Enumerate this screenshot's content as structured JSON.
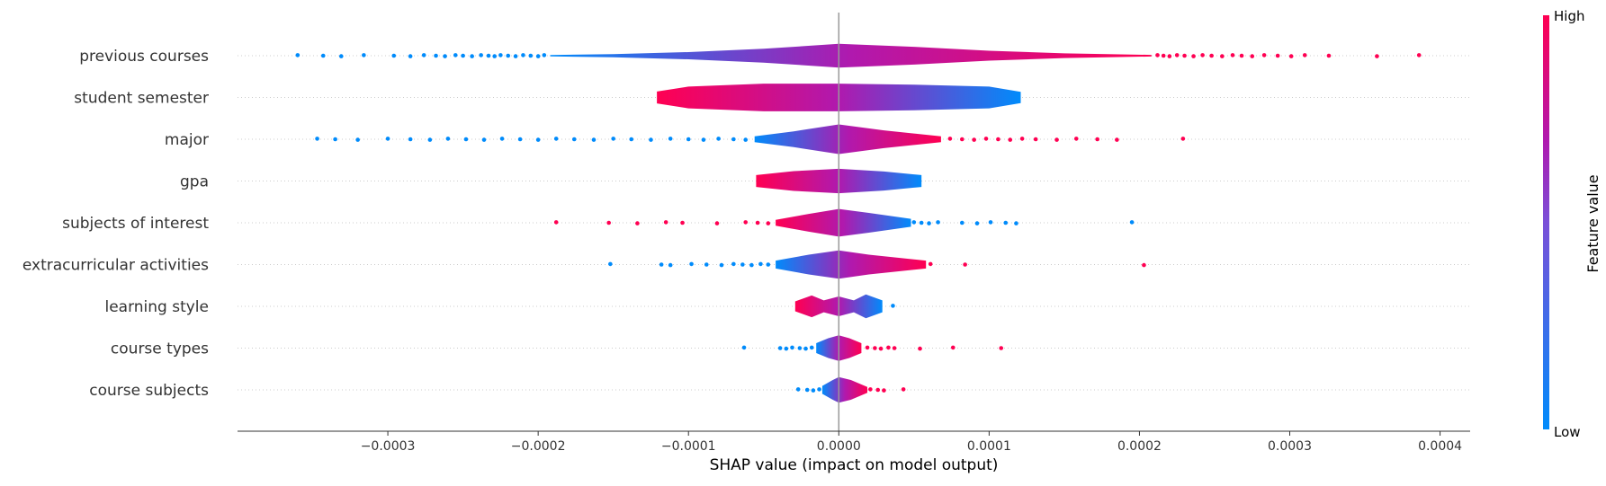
{
  "chart_data": {
    "type": "violin",
    "title": "",
    "xlabel": "SHAP value (impact on model output)",
    "xlim": [
      -0.0004,
      0.00042
    ],
    "x_ticks": [
      -0.0003,
      -0.0002,
      -0.0001,
      0.0,
      0.0001,
      0.0002,
      0.0003,
      0.0004
    ],
    "x_tick_labels": [
      "−0.0003",
      "−0.0002",
      "−0.0001",
      "0.0000",
      "0.0001",
      "0.0002",
      "0.0003",
      "0.0004"
    ],
    "grid": false,
    "colorbar": {
      "label": "Feature value",
      "high_label": "High",
      "low_label": "Low",
      "low_color": "#008bfb",
      "high_color": "#ff0052"
    },
    "features": [
      {
        "name": "previous courses",
        "body": [
          -0.000192,
          0.000208
        ],
        "widths": [
          [
            -0.000192,
            0.03
          ],
          [
            -0.00015,
            0.08
          ],
          [
            -0.0001,
            0.18
          ],
          [
            -5e-05,
            0.35
          ],
          [
            0.0,
            0.6
          ],
          [
            5e-05,
            0.45
          ],
          [
            0.0001,
            0.25
          ],
          [
            0.00015,
            0.12
          ],
          [
            0.000208,
            0.04
          ]
        ],
        "low_side": "left",
        "outliers_low": [
          -0.00036,
          -0.000343,
          -0.000331,
          -0.000316,
          -0.000296,
          -0.000285,
          -0.000276,
          -0.000268,
          -0.000262,
          -0.000255,
          -0.00025,
          -0.000244,
          -0.000238,
          -0.000233,
          -0.000229,
          -0.000225,
          -0.00022,
          -0.000215,
          -0.00021,
          -0.000205,
          -0.0002,
          -0.000196
        ],
        "outliers_high": [
          0.000212,
          0.000216,
          0.00022,
          0.000225,
          0.00023,
          0.000236,
          0.000242,
          0.000248,
          0.000255,
          0.000262,
          0.000268,
          0.000275,
          0.000283,
          0.000292,
          0.000301,
          0.00031,
          0.000326,
          0.000358,
          0.000386
        ]
      },
      {
        "name": "student semester",
        "body": [
          -0.000121,
          0.000121
        ],
        "widths": [
          [
            -0.000121,
            0.3
          ],
          [
            -0.0001,
            0.55
          ],
          [
            -5e-05,
            0.7
          ],
          [
            0.0,
            0.7
          ],
          [
            5e-05,
            0.65
          ],
          [
            0.0001,
            0.55
          ],
          [
            0.000121,
            0.28
          ]
        ],
        "low_side": "right",
        "outliers_low": [],
        "outliers_high": []
      },
      {
        "name": "major",
        "body": [
          -5.6e-05,
          6.8e-05
        ],
        "widths": [
          [
            -5.6e-05,
            0.15
          ],
          [
            -3e-05,
            0.4
          ],
          [
            0.0,
            0.75
          ],
          [
            3e-05,
            0.45
          ],
          [
            6.8e-05,
            0.15
          ]
        ],
        "low_side": "left",
        "outliers_low": [
          -0.000347,
          -0.000335,
          -0.00032,
          -0.0003,
          -0.000285,
          -0.000272,
          -0.00026,
          -0.000248,
          -0.000236,
          -0.000224,
          -0.000212,
          -0.0002,
          -0.000188,
          -0.000176,
          -0.000163,
          -0.00015,
          -0.000138,
          -0.000125,
          -0.000112,
          -0.0001,
          -9e-05,
          -8e-05,
          -7e-05,
          -6.2e-05
        ],
        "outliers_high": [
          7.4e-05,
          8.2e-05,
          9e-05,
          9.8e-05,
          0.000106,
          0.000114,
          0.000122,
          0.000131,
          0.000145,
          0.000158,
          0.000172,
          0.000185,
          0.000229
        ]
      },
      {
        "name": "gpa",
        "body": [
          -5.5e-05,
          5.5e-05
        ],
        "widths": [
          [
            -5.5e-05,
            0.3
          ],
          [
            -3e-05,
            0.5
          ],
          [
            0.0,
            0.62
          ],
          [
            3e-05,
            0.48
          ],
          [
            5.5e-05,
            0.3
          ]
        ],
        "low_side": "right",
        "outliers_low": [],
        "outliers_high": []
      },
      {
        "name": "subjects of interest",
        "body": [
          -4.2e-05,
          4.8e-05
        ],
        "widths": [
          [
            -4.2e-05,
            0.15
          ],
          [
            -2e-05,
            0.45
          ],
          [
            0.0,
            0.7
          ],
          [
            2e-05,
            0.5
          ],
          [
            4.8e-05,
            0.2
          ]
        ],
        "low_side": "right",
        "outliers_low": [
          5e-05,
          5.5e-05,
          6e-05,
          6.6e-05,
          8.2e-05,
          9.2e-05,
          0.000101,
          0.000111,
          0.000118,
          0.000195
        ],
        "outliers_high": [
          -0.000188,
          -0.000153,
          -0.000134,
          -0.000115,
          -0.000104,
          -8.1e-05,
          -6.2e-05,
          -5.4e-05,
          -4.7e-05
        ]
      },
      {
        "name": "extracurricular activities",
        "body": [
          -4.2e-05,
          5.8e-05
        ],
        "widths": [
          [
            -4.2e-05,
            0.2
          ],
          [
            -2e-05,
            0.5
          ],
          [
            0.0,
            0.72
          ],
          [
            2e-05,
            0.5
          ],
          [
            5.8e-05,
            0.2
          ]
        ],
        "low_side": "left",
        "outliers_low": [
          -0.000152,
          -0.000118,
          -0.000112,
          -9.8e-05,
          -8.8e-05,
          -7.8e-05,
          -7e-05,
          -6.4e-05,
          -5.8e-05,
          -5.2e-05,
          -4.7e-05
        ],
        "outliers_high": [
          6.1e-05,
          8.4e-05,
          0.000203
        ]
      },
      {
        "name": "learning style",
        "body": [
          -2.9e-05,
          2.9e-05
        ],
        "widths": [
          [
            -2.9e-05,
            0.25
          ],
          [
            -1.8e-05,
            0.55
          ],
          [
            -1e-05,
            0.3
          ],
          [
            0.0,
            0.5
          ],
          [
            1e-05,
            0.3
          ],
          [
            1.8e-05,
            0.6
          ],
          [
            2.9e-05,
            0.3
          ]
        ],
        "low_side": "right",
        "outliers_low": [
          3.6e-05
        ],
        "outliers_high": []
      },
      {
        "name": "course types",
        "body": [
          -1.5e-05,
          1.5e-05
        ],
        "widths": [
          [
            -1.5e-05,
            0.25
          ],
          [
            -7e-06,
            0.5
          ],
          [
            0.0,
            0.65
          ],
          [
            7e-06,
            0.5
          ],
          [
            1.5e-05,
            0.25
          ]
        ],
        "low_side": "left",
        "outliers_low": [
          -6.3e-05,
          -3.9e-05,
          -3.5e-05,
          -3.1e-05,
          -2.6e-05,
          -2.2e-05,
          -1.8e-05
        ],
        "outliers_high": [
          1.9e-05,
          2.4e-05,
          2.8e-05,
          3.3e-05,
          3.7e-05,
          5.4e-05,
          7.6e-05,
          0.000108
        ]
      },
      {
        "name": "course subjects",
        "body": [
          -1.1e-05,
          1.9e-05
        ],
        "widths": [
          [
            -1.1e-05,
            0.2
          ],
          [
            -4e-06,
            0.5
          ],
          [
            0.0,
            0.65
          ],
          [
            8e-06,
            0.5
          ],
          [
            1.9e-05,
            0.15
          ]
        ],
        "low_side": "left",
        "outliers_low": [
          -2.7e-05,
          -2.1e-05,
          -1.7e-05,
          -1.3e-05
        ],
        "outliers_high": [
          2.1e-05,
          2.6e-05,
          3e-05,
          4.3e-05
        ]
      }
    ]
  }
}
